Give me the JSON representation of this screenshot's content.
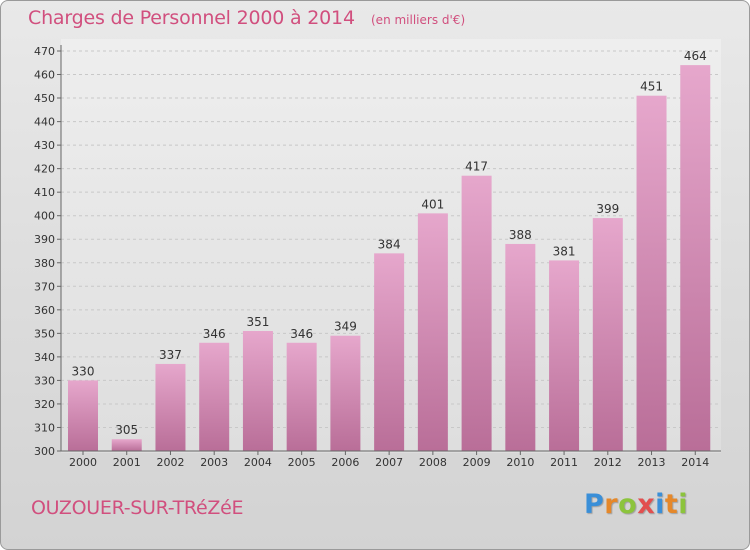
{
  "header": {
    "title": "Charges de Personnel 2000 à 2014",
    "subtitle": "(en milliers d'€)"
  },
  "footer": {
    "commune": "OUZOUER-SUR-TRéZéE",
    "logo_letters": [
      "P",
      "r",
      "o",
      "x",
      "i",
      "t",
      "i"
    ],
    "logo_colors": [
      "#3a8fd8",
      "#e5882a",
      "#8cc43c",
      "#e24f4f",
      "#3a8fd8",
      "#e5882a",
      "#8cc43c"
    ]
  },
  "colors": {
    "bar_top": "#e6a7cc",
    "bar_bottom": "#b96e98",
    "accent": "#d14f7e"
  },
  "chart_data": {
    "type": "bar",
    "categories": [
      "2000",
      "2001",
      "2002",
      "2003",
      "2004",
      "2005",
      "2006",
      "2007",
      "2008",
      "2009",
      "2010",
      "2011",
      "2012",
      "2013",
      "2014"
    ],
    "values": [
      330,
      305,
      337,
      346,
      351,
      346,
      349,
      384,
      401,
      417,
      388,
      381,
      399,
      451,
      464
    ],
    "ylim": [
      300,
      470
    ],
    "yticks": [
      300,
      310,
      320,
      330,
      340,
      350,
      360,
      370,
      380,
      390,
      400,
      410,
      420,
      430,
      440,
      450,
      460,
      470
    ],
    "grid": true
  }
}
